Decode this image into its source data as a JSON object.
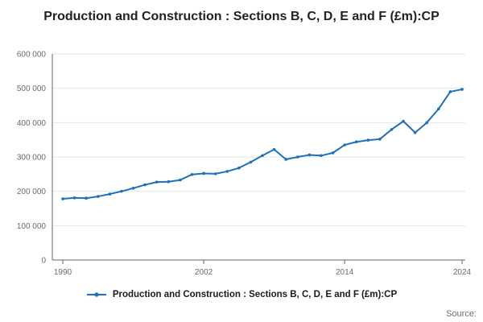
{
  "title": "Production and Construction : Sections B, C, D, E and F (£m):CP",
  "legend": {
    "label": "Production and Construction : Sections B, C, D, E and F (£m):CP"
  },
  "source": {
    "label": "Source:"
  },
  "chart_data": {
    "type": "line",
    "title": "Production and Construction : Sections B, C, D, E and F (£m):CP",
    "xlabel": "",
    "ylabel": "",
    "x": [
      1990,
      1991,
      1992,
      1993,
      1994,
      1995,
      1996,
      1997,
      1998,
      1999,
      2000,
      2001,
      2002,
      2003,
      2004,
      2005,
      2006,
      2007,
      2008,
      2009,
      2010,
      2011,
      2012,
      2013,
      2014,
      2015,
      2016,
      2017,
      2018,
      2019,
      2020,
      2021,
      2022,
      2023,
      2024
    ],
    "series": [
      {
        "name": "Production and Construction : Sections B, C, D, E and F (£m):CP",
        "values": [
          178000,
          181000,
          180000,
          185000,
          192000,
          200000,
          209000,
          219000,
          227000,
          228000,
          233000,
          249000,
          252000,
          251000,
          258000,
          268000,
          285000,
          304000,
          322000,
          293000,
          300000,
          306000,
          304000,
          312000,
          335000,
          344000,
          349000,
          352000,
          380000,
          404000,
          371000,
          400000,
          440000,
          490000,
          497000
        ]
      }
    ],
    "xlim": [
      1990,
      2024
    ],
    "ylim": [
      0,
      600000
    ],
    "x_ticks": [
      1990,
      2002,
      2014,
      2024
    ],
    "y_ticks": [
      0,
      100000,
      200000,
      300000,
      400000,
      500000,
      600000
    ],
    "y_tick_labels": [
      "0",
      "100 000",
      "200 000",
      "300 000",
      "400 000",
      "500 000",
      "600 000"
    ],
    "grid": true,
    "legend_position": "bottom",
    "line_color": "#1d70b8",
    "grid_color": "#e6e6e6",
    "axis_color": "#666666"
  }
}
